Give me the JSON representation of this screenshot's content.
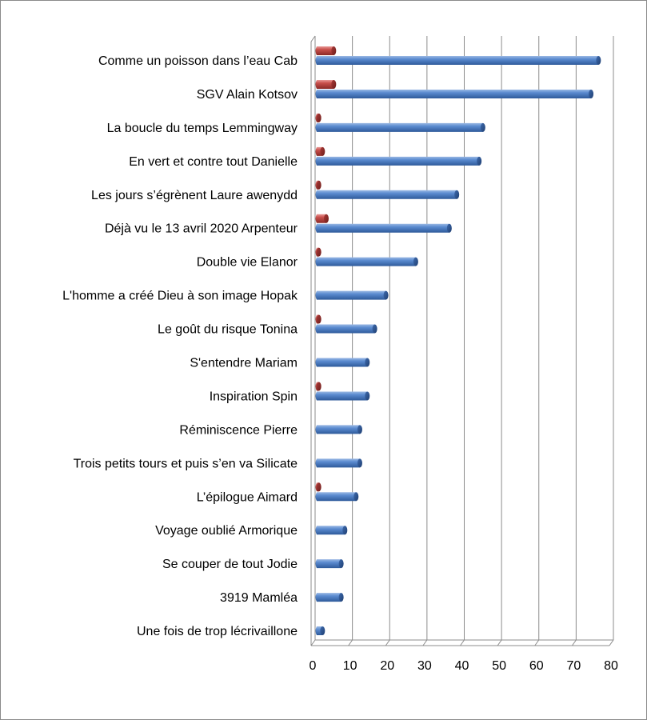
{
  "chart_data": {
    "type": "bar",
    "orientation": "horizontal",
    "style": "3d-cylinder",
    "categories": [
      "Comme un poisson dans l’eau Cab",
      "SGV Alain Kotsov",
      "La boucle du temps Lemmingway",
      "En vert et contre tout  Danielle",
      "Les jours s’égrènent  Laure awenydd",
      "Déjà vu le 13 avril 2020 Arpenteur",
      "Double vie Elanor",
      "L'homme a créé Dieu à son image Hopak",
      "Le goût du risque Tonina",
      "S'entendre Mariam",
      "Inspiration Spin",
      "Réminiscence Pierre",
      "Trois petits tours et puis s’en va Silicate",
      "L’épilogue Aimard",
      "Voyage oublié Armorique",
      "Se couper de tout Jodie",
      "3919 Mamléa",
      "Une fois de trop lécrivaillone"
    ],
    "series": [
      {
        "color": "#c0504d",
        "values": [
          5,
          5,
          1,
          2,
          1,
          3,
          1,
          0,
          1,
          0,
          1,
          0,
          0,
          1,
          0,
          0,
          0,
          0
        ]
      },
      {
        "color": "#4f81bd",
        "values": [
          76,
          74,
          45,
          44,
          38,
          36,
          27,
          19,
          16,
          14,
          14,
          12,
          12,
          11,
          8,
          7,
          7,
          2
        ]
      }
    ],
    "x_ticks": [
      "0",
      "10",
      "20",
      "30",
      "40",
      "50",
      "60",
      "70",
      "80"
    ],
    "xlim": [
      0,
      80
    ],
    "grid": true,
    "legend": "none"
  }
}
